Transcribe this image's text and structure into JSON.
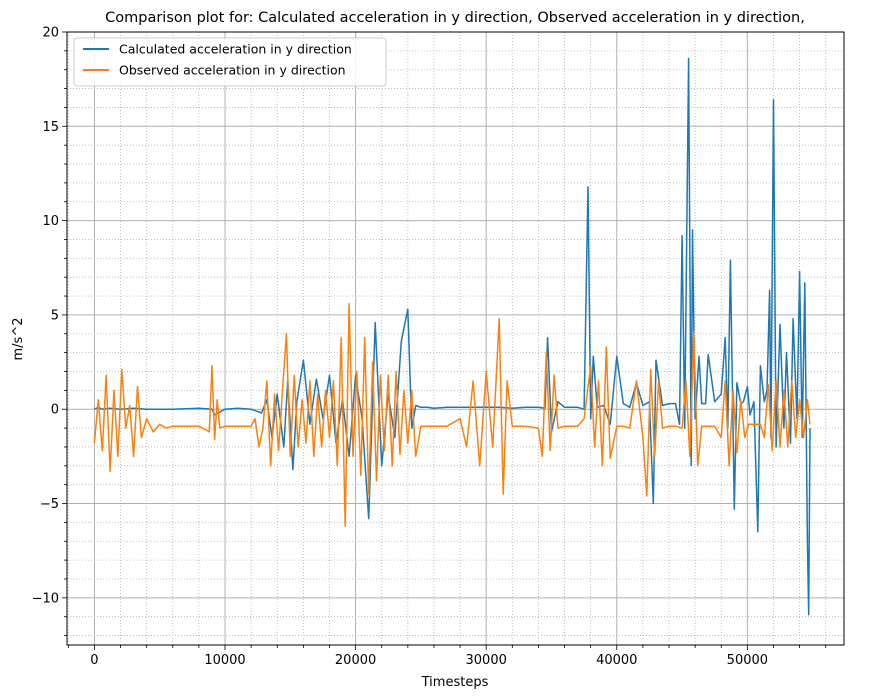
{
  "chart_data": {
    "type": "line",
    "title": "Comparison plot for: Calculated acceleration in y direction, Observed acceleration in y direction,",
    "xlabel": "Timesteps",
    "ylabel": "m/s^2",
    "xlim": [
      -2100,
      57400
    ],
    "ylim": [
      -12.5,
      20
    ],
    "xticks": [
      0,
      10000,
      20000,
      30000,
      40000,
      50000
    ],
    "xtick_labels": [
      "0",
      "10000",
      "20000",
      "30000",
      "40000",
      "50000"
    ],
    "yticks": [
      -10,
      -5,
      0,
      5,
      10,
      15,
      20
    ],
    "ytick_labels": [
      "−10",
      "−5",
      "0",
      "5",
      "10",
      "15",
      "20"
    ],
    "grid": "major and minor (dotted)",
    "legend_position": "top-left",
    "series": [
      {
        "name": "Calculated acceleration in y direction",
        "color": "#1f77b4",
        "x": [
          0,
          300,
          600,
          1200,
          2000,
          3000,
          4000,
          5000,
          6000,
          8000,
          9000,
          9200,
          10000,
          11000,
          12000,
          12800,
          13200,
          13600,
          14000,
          14500,
          14800,
          15200,
          15500,
          16000,
          16500,
          17000,
          17500,
          18000,
          18500,
          19000,
          19500,
          20000,
          20500,
          21000,
          21500,
          22000,
          22500,
          23000,
          23500,
          24000,
          24300,
          24600,
          25000,
          25500,
          26000,
          27000,
          28000,
          29000,
          30000,
          31000,
          32000,
          33000,
          34000,
          34500,
          34700,
          35000,
          35500,
          36000,
          37000,
          37500,
          37800,
          38000,
          38200,
          38500,
          39000,
          39500,
          40000,
          40500,
          41000,
          41500,
          42000,
          42500,
          42800,
          43000,
          43500,
          44000,
          44500,
          44800,
          45000,
          45200,
          45500,
          45700,
          45800,
          46000,
          46300,
          46500,
          46800,
          47000,
          47500,
          48000,
          48300,
          48500,
          48700,
          49000,
          49200,
          49500,
          49700,
          50000,
          50200,
          50500,
          50800,
          51000,
          51300,
          51500,
          51700,
          51800,
          52000,
          52200,
          52500,
          52800,
          53000,
          53300,
          53500,
          53800,
          54000,
          54200,
          54400,
          54600,
          54700,
          54800
        ],
        "y": [
          0.0,
          0.1,
          0.0,
          0.05,
          0.0,
          0.05,
          0.0,
          0.0,
          0.0,
          0.05,
          0.0,
          -0.3,
          0.0,
          0.05,
          0.0,
          -0.2,
          0.5,
          -1.5,
          0.8,
          -2.0,
          1.5,
          -3.2,
          0.4,
          2.6,
          -0.8,
          1.6,
          -0.5,
          1.8,
          -1.8,
          0.5,
          -2.5,
          1.8,
          -0.5,
          -5.8,
          4.6,
          -3.0,
          0.8,
          -1.5,
          3.6,
          5.3,
          -1.0,
          0.2,
          0.1,
          0.1,
          0.05,
          0.1,
          0.1,
          0.1,
          0.1,
          0.1,
          0.05,
          0.1,
          0.1,
          0.05,
          3.8,
          -1.2,
          0.4,
          0.1,
          0.1,
          0.0,
          11.8,
          -0.5,
          2.8,
          0.1,
          0.2,
          -0.8,
          2.8,
          0.3,
          0.1,
          1.4,
          0.2,
          0.4,
          -5.0,
          2.6,
          0.2,
          0.3,
          0.3,
          -0.8,
          9.2,
          -1.0,
          18.6,
          -3.0,
          9.5,
          -0.5,
          2.8,
          0.3,
          0.3,
          2.9,
          0.4,
          0.8,
          3.8,
          -1.0,
          7.9,
          -5.3,
          1.4,
          0.3,
          0.4,
          1.2,
          -0.3,
          0.4,
          -6.5,
          2.3,
          0.4,
          1.0,
          6.3,
          -1.5,
          16.4,
          -2.0,
          4.5,
          -1.0,
          3.0,
          -1.8,
          4.8,
          -0.5,
          7.3,
          -1.5,
          6.7,
          -7.0,
          -10.9,
          -1.0
        ]
      },
      {
        "name": "Observed acceleration in y direction",
        "color": "#ff7f0e",
        "x": [
          0,
          300,
          600,
          900,
          1200,
          1500,
          1800,
          2100,
          2400,
          2700,
          3000,
          3300,
          3600,
          4000,
          4500,
          5000,
          5500,
          6000,
          7000,
          8000,
          8800,
          9000,
          9200,
          9400,
          9600,
          10000,
          11000,
          12000,
          12300,
          12600,
          12900,
          13200,
          13500,
          13800,
          14100,
          14400,
          14700,
          15000,
          15300,
          15600,
          15900,
          16200,
          16500,
          16800,
          17100,
          17400,
          17700,
          18000,
          18300,
          18600,
          18900,
          19200,
          19500,
          19800,
          20100,
          20400,
          20700,
          21000,
          21300,
          21600,
          21900,
          22200,
          22500,
          22800,
          23100,
          23400,
          23700,
          24000,
          24300,
          24600,
          25000,
          26000,
          27000,
          28000,
          28500,
          29000,
          29500,
          30000,
          30500,
          31000,
          31300,
          31600,
          32000,
          33000,
          34000,
          34300,
          34600,
          34900,
          35200,
          35500,
          36000,
          37000,
          37500,
          38000,
          38300,
          38600,
          38900,
          39200,
          39500,
          40000,
          40500,
          41000,
          41500,
          42000,
          42300,
          42600,
          42900,
          43200,
          43500,
          44000,
          44500,
          45000,
          45300,
          45600,
          45900,
          46200,
          46500,
          47000,
          47500,
          48000,
          48300,
          48600,
          48900,
          49200,
          49500,
          49800,
          50100,
          50500,
          51000,
          51300,
          51600,
          51900,
          52200,
          52500,
          52800,
          53100,
          53400,
          53700,
          54000,
          54300,
          54600,
          54800
        ],
        "y": [
          -1.8,
          0.5,
          -2.2,
          1.8,
          -3.3,
          1.0,
          -2.5,
          2.1,
          -1.0,
          0.2,
          -2.5,
          1.2,
          -1.5,
          -0.5,
          -1.2,
          -0.8,
          -1.0,
          -0.9,
          -0.9,
          -0.9,
          -1.2,
          2.3,
          -1.6,
          0.5,
          -1.0,
          -0.9,
          -0.9,
          -0.9,
          -0.5,
          -2.0,
          -1.0,
          1.5,
          -3.0,
          0.8,
          -2.2,
          1.0,
          4.0,
          -2.5,
          1.8,
          -2.0,
          0.5,
          -1.8,
          1.5,
          -2.5,
          0.8,
          -2.0,
          1.0,
          -1.5,
          1.5,
          -3.0,
          3.8,
          -6.2,
          5.6,
          -2.5,
          2.0,
          -3.5,
          3.8,
          -4.5,
          2.5,
          -3.8,
          1.8,
          -2.2,
          1.8,
          -3.0,
          2.0,
          -2.4,
          1.0,
          -1.8,
          1.0,
          -2.5,
          -0.9,
          -0.9,
          -0.9,
          -0.5,
          -2.0,
          1.5,
          -3.0,
          2.0,
          -2.0,
          4.8,
          -4.5,
          1.5,
          -0.9,
          -0.9,
          -1.0,
          -2.5,
          3.0,
          -2.2,
          1.8,
          -1.0,
          -0.9,
          -0.9,
          -0.5,
          2.3,
          -2.0,
          1.5,
          -3.0,
          3.3,
          -2.6,
          -0.9,
          -0.9,
          -1.0,
          1.5,
          -1.5,
          -4.6,
          2.1,
          -2.5,
          1.5,
          -1.0,
          -0.9,
          -0.9,
          -1.0,
          1.5,
          -2.5,
          4.1,
          -3.0,
          -0.9,
          -0.9,
          -0.9,
          -1.5,
          1.5,
          -3.0,
          1.0,
          -2.3,
          0.5,
          -1.5,
          -0.8,
          -0.8,
          -0.8,
          -1.5,
          1.3,
          -2.2,
          1.5,
          -2.0,
          1.0,
          -2.0,
          1.5,
          -1.5,
          0.5,
          -1.5,
          0.5,
          -0.8
        ]
      }
    ]
  }
}
